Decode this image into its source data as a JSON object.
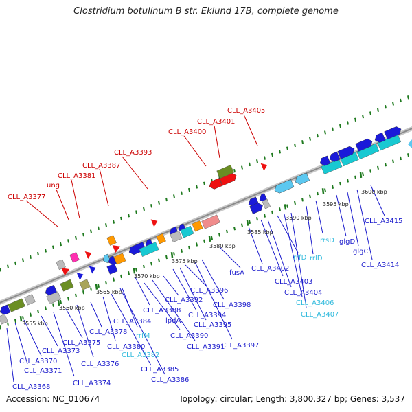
{
  "header": {
    "title": "Clostridium botulinum B str. Eklund 17B, complete genome"
  },
  "footer": {
    "accession": "Accession: NC_010674",
    "summary": "Topology: circular; Length: 3,800,327 bp; Genes: 3,537"
  },
  "colors": {
    "label_top": "#cc0000",
    "label_bottom": "#1a1acc",
    "label_rna": "#33bbdd",
    "backbone": "#9a9a9a",
    "tick": "#1f7a1f",
    "cds_blue": "#1a1ad9",
    "cds_cyan": "#18c9d2",
    "rrna": "#5cc8f0",
    "olive": "#6b8e23",
    "khaki": "#a9a45a",
    "orange": "#ff9900",
    "red": "#ee1111",
    "pink": "#ff2fb0",
    "salmon": "#f08c8c",
    "grey": "#bbbbbb"
  },
  "kbp_ticks": [
    "3555 kbp",
    "3560 kbp",
    "3565 kbp",
    "3570 kbp",
    "3575 kbp",
    "3580 kbp",
    "3585 kbp",
    "3590 kbp",
    "3595 kbp",
    "3600 kbp"
  ],
  "top_labels": [
    "CLL_A3377",
    "ung",
    "CLL_A3381",
    "CLL_A3387",
    "CLL_A3393",
    "CLL_A3400",
    "CLL_A3401",
    "CLL_A3405"
  ],
  "bottom_labels": [
    "CLL_A3368",
    "CLL_A3371",
    "CLL_A3370",
    "CLL_A3373",
    "CLL_A3374",
    "CLL_A3375",
    "CLL_A3376",
    "CLL_A3378",
    "CLL_A3380",
    "CLL_A3382",
    "CLL_A3384",
    "CLL_A3385",
    "CLL_A3386",
    "rrfM",
    "CLL_A3388",
    "CLL_A3390",
    "CLL_A3391",
    "lpdA",
    "CLL_A3392",
    "CLL_A3394",
    "CLL_A3395",
    "CLL_A3396",
    "CLL_A3397",
    "CLL_A3398",
    "fusA",
    "CLL_A3402",
    "CLL_A3403",
    "CLL_A3404",
    "rrfD",
    "rrlD",
    "CLL_A3406",
    "CLL_A3407",
    "rrsD",
    "glgD",
    "glgC",
    "CLL_A3414",
    "CLL_A3415"
  ]
}
